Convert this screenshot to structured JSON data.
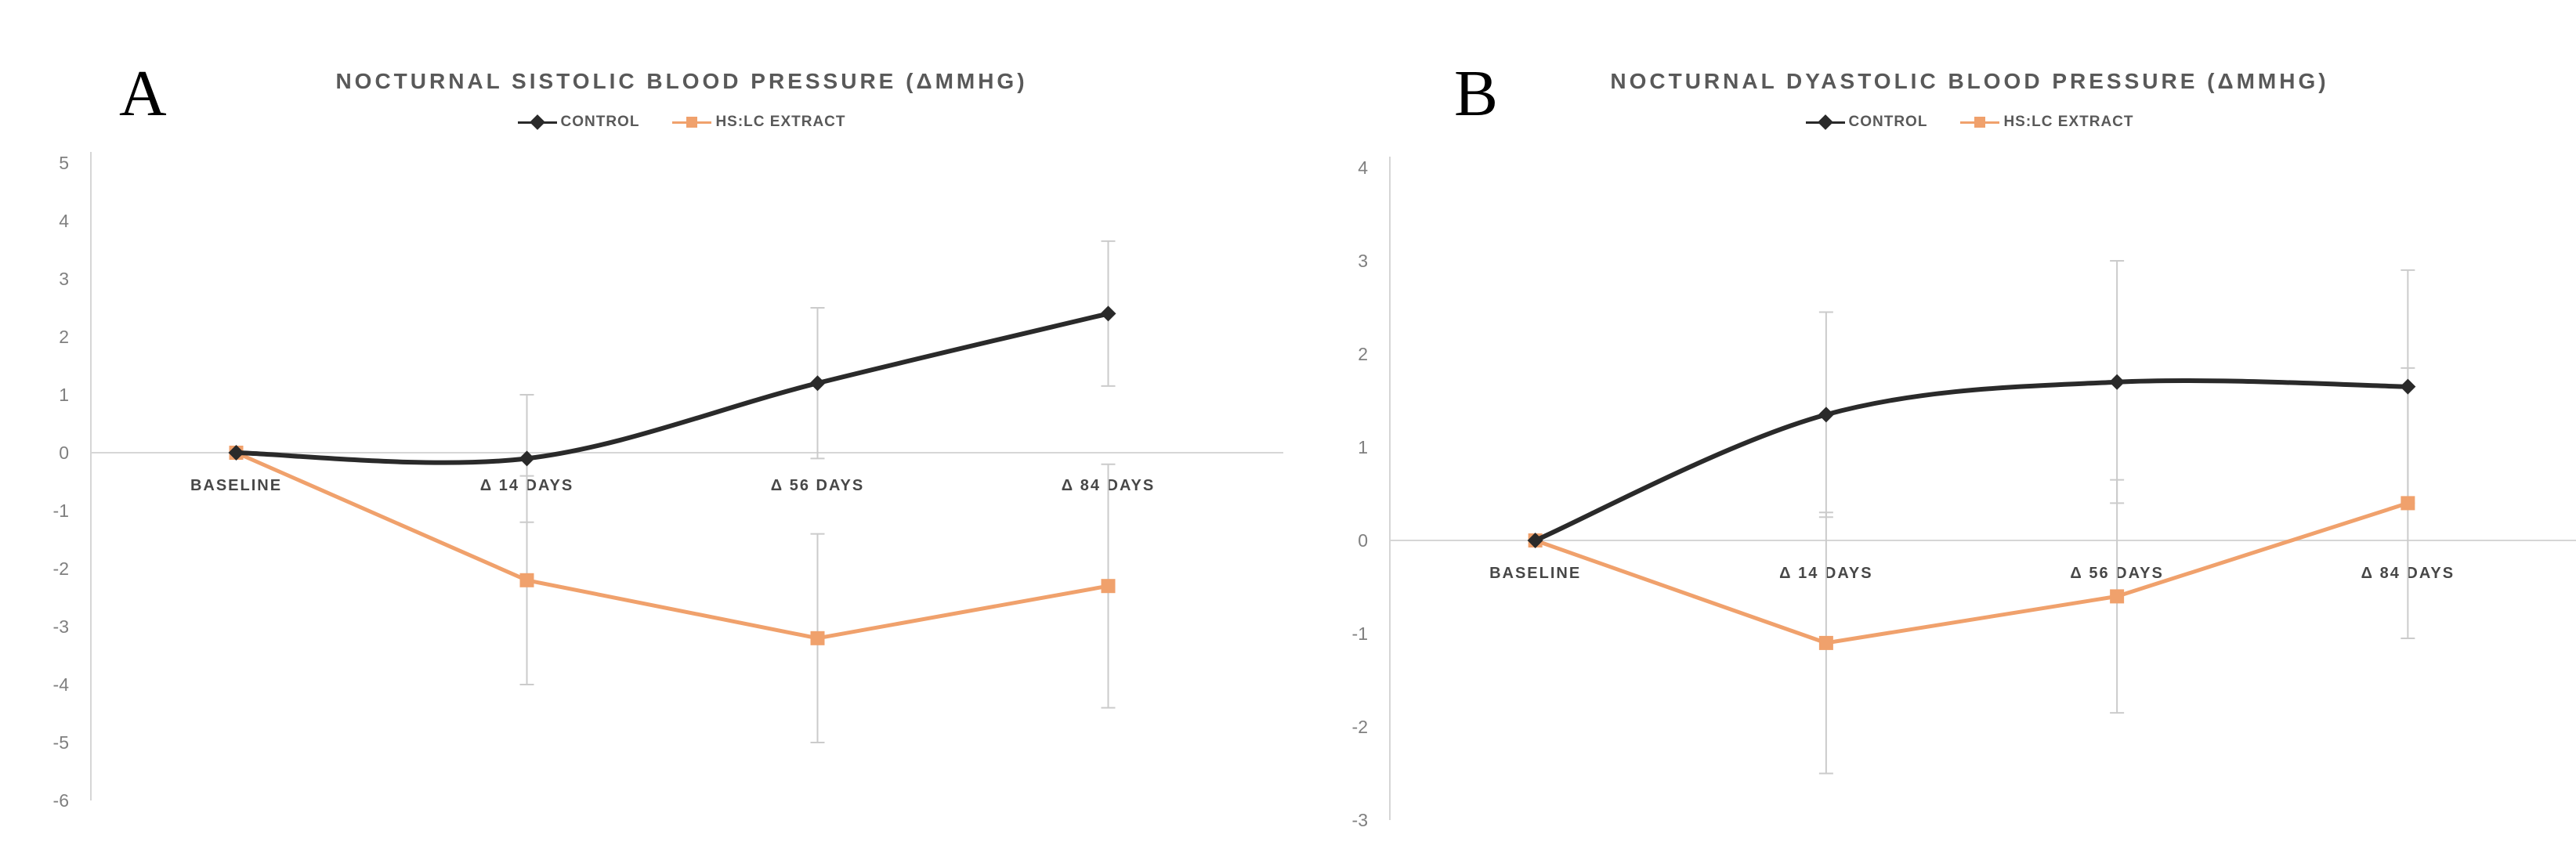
{
  "colors": {
    "background": "#ffffff",
    "control_series": "#2a2a2a",
    "extract_series": "#F0A16C",
    "error_bar": "#cbcbcb",
    "axis_line": "#d6d6d6",
    "title_text": "#595959",
    "y_tick_text": "#7f7f7f",
    "x_tick_text": "#474747",
    "panel_letter": "#000000"
  },
  "chart_data": [
    {
      "type": "line",
      "panel_label": "A",
      "title": "NOCTURNAL SISTOLIC BLOOD PRESSURE (ΔMMHG)",
      "categories": [
        "BASELINE",
        "Δ 14 DAYS",
        "Δ 56 DAYS",
        "Δ 84 DAYS"
      ],
      "xlabel": "",
      "ylabel": "",
      "ylim": [
        -6,
        5
      ],
      "ytick_step": 1,
      "grid": "zero-line-only",
      "legend_position": "top-center",
      "series": [
        {
          "name": "CONTROL",
          "color": "#2a2a2a",
          "marker": "diamond",
          "line_style": "smooth",
          "values": [
            0,
            -0.1,
            1.2,
            2.4
          ],
          "error_bars": [
            null,
            1.1,
            1.3,
            1.25
          ]
        },
        {
          "name": "HS:LC EXTRACT",
          "color": "#F0A16C",
          "marker": "square",
          "line_style": "straight",
          "values": [
            0,
            -2.2,
            -3.2,
            -2.3
          ],
          "error_bars": [
            null,
            1.8,
            1.8,
            2.1
          ]
        }
      ]
    },
    {
      "type": "line",
      "panel_label": "B",
      "title": "NOCTURNAL DYASTOLIC BLOOD PRESSURE (ΔMMHG)",
      "categories": [
        "BASELINE",
        "Δ 14 DAYS",
        "Δ 56 DAYS",
        "Δ 84 DAYS"
      ],
      "xlabel": "",
      "ylabel": "",
      "ylim": [
        -3,
        4
      ],
      "ytick_step": 1,
      "grid": "zero-line-only",
      "legend_position": "top-center",
      "series": [
        {
          "name": "CONTROL",
          "color": "#2a2a2a",
          "marker": "diamond",
          "line_style": "smooth",
          "values": [
            0,
            1.35,
            1.7,
            1.65
          ],
          "error_bars": [
            null,
            1.1,
            1.3,
            1.25
          ]
        },
        {
          "name": "HS:LC EXTRACT",
          "color": "#F0A16C",
          "marker": "square",
          "line_style": "straight",
          "values": [
            0,
            -1.1,
            -0.6,
            0.4
          ],
          "error_bars": [
            null,
            1.4,
            1.25,
            1.45
          ]
        }
      ]
    }
  ]
}
